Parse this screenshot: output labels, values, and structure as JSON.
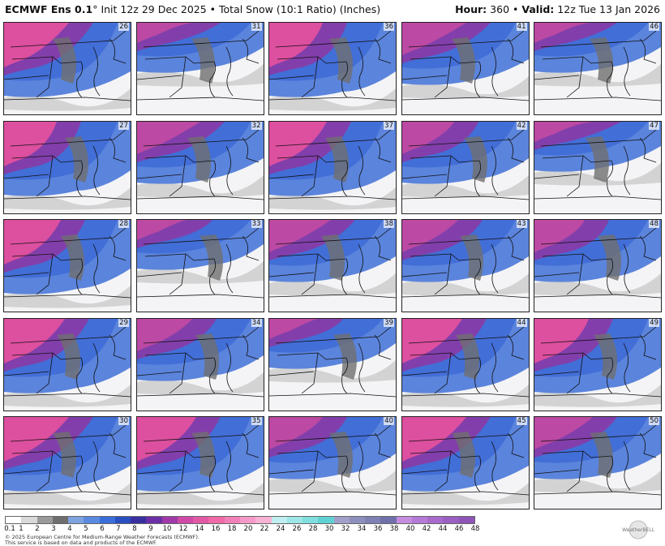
{
  "header": {
    "model": "ECMWF Ens 0.1",
    "degree": "°",
    "init": "Init 12z 29 Dec 2025",
    "product": "Total Snow (10:1 Ratio) (Inches)",
    "hour_label": "Hour:",
    "hour_value": "360",
    "valid_label": "Valid:",
    "valid_value": "12z Tue 13 Jan 2026"
  },
  "panels": [
    {
      "member": "26",
      "snow": "heavy"
    },
    {
      "member": "31",
      "snow": "light"
    },
    {
      "member": "36",
      "snow": "heavy"
    },
    {
      "member": "41",
      "snow": "moderate"
    },
    {
      "member": "46",
      "snow": "light"
    },
    {
      "member": "27",
      "snow": "heavy"
    },
    {
      "member": "32",
      "snow": "moderate"
    },
    {
      "member": "37",
      "snow": "heavy"
    },
    {
      "member": "42",
      "snow": "moderate"
    },
    {
      "member": "47",
      "snow": "light"
    },
    {
      "member": "28",
      "snow": "heavy"
    },
    {
      "member": "33",
      "snow": "light"
    },
    {
      "member": "38",
      "snow": "moderate"
    },
    {
      "member": "43",
      "snow": "moderate"
    },
    {
      "member": "48",
      "snow": "moderate"
    },
    {
      "member": "29",
      "snow": "heavy"
    },
    {
      "member": "34",
      "snow": "moderate"
    },
    {
      "member": "39",
      "snow": "light"
    },
    {
      "member": "44",
      "snow": "heavy"
    },
    {
      "member": "49",
      "snow": "heavy"
    },
    {
      "member": "30",
      "snow": "heavy"
    },
    {
      "member": "35",
      "snow": "heavy"
    },
    {
      "member": "40",
      "snow": "moderate"
    },
    {
      "member": "45",
      "snow": "heavy"
    },
    {
      "member": "50",
      "snow": "moderate"
    }
  ],
  "colorbar": {
    "ticks": [
      "0.1",
      "1",
      "2",
      "3",
      "4",
      "5",
      "6",
      "7",
      "8",
      "9",
      "10",
      "12",
      "14",
      "16",
      "18",
      "20",
      "22",
      "24",
      "26",
      "28",
      "30",
      "32",
      "34",
      "36",
      "38",
      "40",
      "42",
      "44",
      "46",
      "48"
    ],
    "colors": [
      "#ffffff",
      "#d9d9d9",
      "#9a9a9a",
      "#6e6e6e",
      "#7fa3df",
      "#5a8ae0",
      "#3a6ed8",
      "#2a4fbf",
      "#3a2f9f",
      "#6a2fa6",
      "#a03aa8",
      "#d04aa8",
      "#e25aa6",
      "#f06aa8",
      "#f280b8",
      "#f59ac6",
      "#f7b2d4",
      "#bfeff0",
      "#9fe6e6",
      "#80dede",
      "#5fd3d3",
      "#a0a0c8",
      "#8f8fbe",
      "#8080b4",
      "#7070aa",
      "#c58ce0",
      "#b57ad6",
      "#a86bcc",
      "#9a5fc2",
      "#8e54b8"
    ]
  },
  "copyright": {
    "line1": "© 2025 European Centre for Medium-Range Weather Forecasts (ECMWF).",
    "line2": "This service is based on data and products of the ECMWF."
  },
  "logo": {
    "text": "WeatherBELL"
  }
}
